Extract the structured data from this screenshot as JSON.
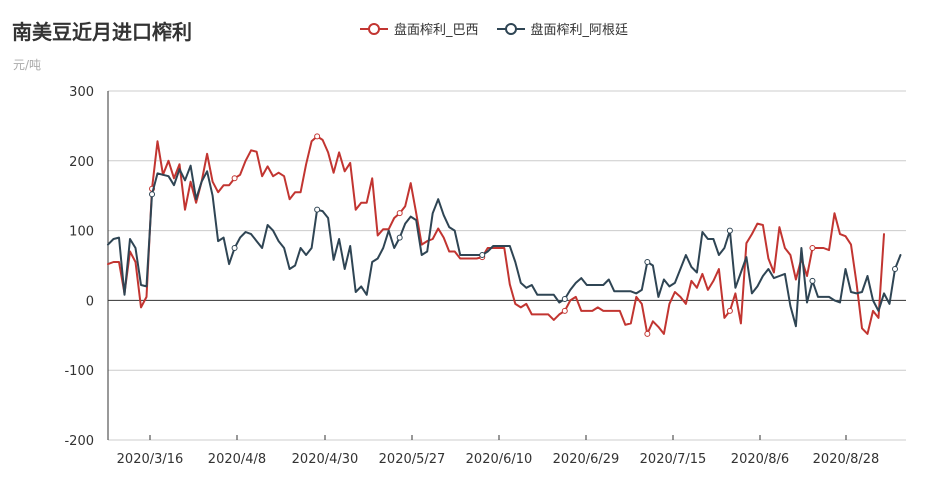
{
  "title": "南美豆近月进口榨利",
  "unit": "元/吨",
  "colors": {
    "brazil": "#c23531",
    "argentina": "#2f4554",
    "grid": "#cccccc",
    "axis": "#333333"
  },
  "chart_data": {
    "type": "line",
    "title": "南美豆近月进口榨利",
    "ylabel": "元/吨",
    "xlabel": "",
    "ylim": [
      -200,
      300
    ],
    "y_ticks": [
      -200,
      -100,
      0,
      100,
      200,
      300
    ],
    "x_tick_labels": [
      "2020/3/16",
      "2020/4/8",
      "2020/4/30",
      "2020/5/27",
      "2020/6/10",
      "2020/6/29",
      "2020/7/15",
      "2020/8/6",
      "2020/8/28"
    ],
    "legend_position": "top-center",
    "grid": true,
    "series": [
      {
        "name": "盘面榨利_巴西",
        "color": "#c23531",
        "values": [
          52,
          55,
          55,
          10,
          70,
          55,
          -10,
          5,
          160,
          228,
          180,
          200,
          175,
          195,
          130,
          170,
          140,
          170,
          210,
          170,
          155,
          165,
          165,
          175,
          180,
          200,
          215,
          213,
          178,
          192,
          178,
          183,
          178,
          145,
          155,
          155,
          195,
          228,
          235,
          230,
          212,
          183,
          212,
          185,
          197,
          130,
          140,
          140,
          175,
          93,
          102,
          102,
          118,
          125,
          135,
          168,
          125,
          80,
          85,
          88,
          103,
          90,
          70,
          70,
          60,
          60,
          60,
          60,
          62,
          75,
          75,
          75,
          75,
          23,
          -5,
          -10,
          -5,
          -20,
          -20,
          -20,
          -20,
          -28,
          -20,
          -15,
          0,
          5,
          -15,
          -15,
          -15,
          -10,
          -15,
          -15,
          -15,
          -15,
          -35,
          -33,
          5,
          -5,
          -48,
          -30,
          -38,
          -48,
          -5,
          12,
          5,
          -5,
          28,
          18,
          38,
          15,
          28,
          45,
          -25,
          -15,
          10,
          -33,
          82,
          95,
          110,
          108,
          60,
          40,
          105,
          75,
          65,
          30,
          60,
          35,
          75,
          75,
          75,
          72,
          125,
          95,
          92,
          80,
          25,
          -40,
          -48,
          -15,
          -25,
          95
        ]
      },
      {
        "name": "盘面榨利_阿根廷",
        "color": "#2f4554",
        "values": [
          80,
          88,
          90,
          8,
          88,
          75,
          22,
          20,
          152,
          182,
          180,
          178,
          165,
          188,
          172,
          193,
          145,
          170,
          185,
          150,
          85,
          90,
          52,
          75,
          90,
          98,
          95,
          85,
          75,
          108,
          100,
          85,
          75,
          45,
          50,
          75,
          65,
          75,
          130,
          128,
          118,
          58,
          88,
          45,
          78,
          12,
          20,
          8,
          55,
          60,
          75,
          100,
          75,
          90,
          110,
          120,
          115,
          65,
          70,
          125,
          145,
          122,
          105,
          100,
          65,
          65,
          65,
          65,
          65,
          70,
          78,
          78,
          78,
          78,
          55,
          25,
          18,
          22,
          8,
          8,
          8,
          8,
          -3,
          2,
          15,
          25,
          32,
          22,
          22,
          22,
          22,
          30,
          13,
          13,
          13,
          13,
          10,
          15,
          55,
          50,
          5,
          30,
          20,
          25,
          45,
          65,
          48,
          40,
          98,
          88,
          88,
          65,
          75,
          100,
          18,
          40,
          62,
          10,
          20,
          35,
          45,
          32,
          35,
          38,
          -8,
          -37,
          75,
          -3,
          28,
          5,
          5,
          5,
          0,
          -3,
          45,
          12,
          10,
          12,
          35,
          0,
          -15,
          10,
          -5,
          45,
          65
        ]
      }
    ]
  }
}
